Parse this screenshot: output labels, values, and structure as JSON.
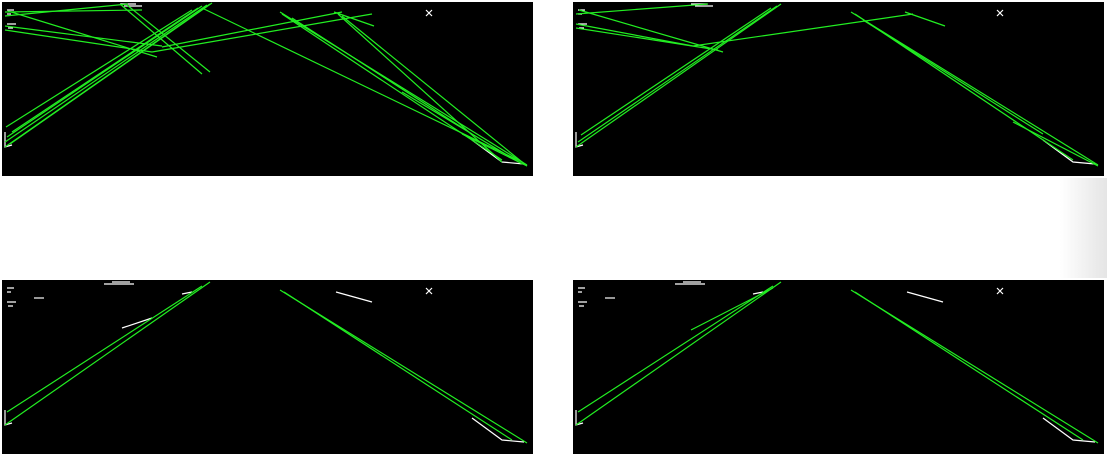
{
  "image": {
    "description_colors": {
      "background": "#ffffff",
      "panel_background": "#000000",
      "line_color": "#22ee22",
      "edge_color": "#ffffff"
    },
    "panels": [
      {
        "name": "top-left",
        "variant": "dense"
      },
      {
        "name": "top-right",
        "variant": "medium"
      },
      {
        "name": "bottom-left",
        "variant": "clean"
      },
      {
        "name": "bottom-right",
        "variant": "clean-extra"
      }
    ]
  }
}
